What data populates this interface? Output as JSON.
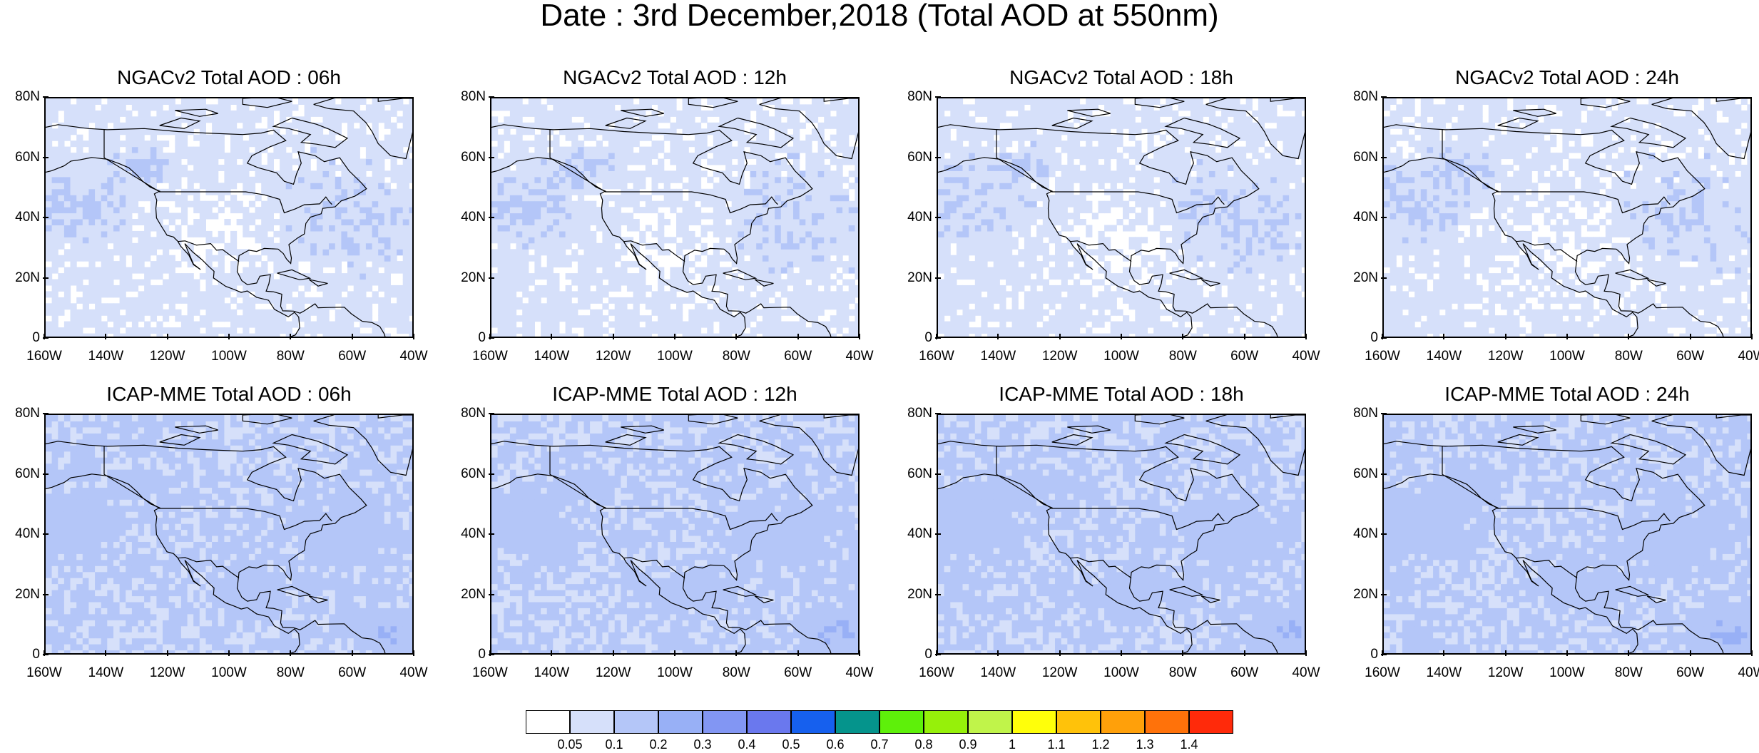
{
  "title": "Date : 3rd December,2018 (Total AOD at 550nm)",
  "y_ticks": [
    "80N",
    "60N",
    "40N",
    "20N",
    "0"
  ],
  "x_ticks": [
    "160W",
    "140W",
    "120W",
    "100W",
    "80W",
    "60W",
    "40W"
  ],
  "panels": [
    {
      "title": "NGACv2 Total AOD : 06h",
      "model": "NGACv2",
      "forecast_hour": "06h"
    },
    {
      "title": "NGACv2 Total AOD : 12h",
      "model": "NGACv2",
      "forecast_hour": "12h"
    },
    {
      "title": "NGACv2 Total AOD : 18h",
      "model": "NGACv2",
      "forecast_hour": "18h"
    },
    {
      "title": "NGACv2 Total AOD : 24h",
      "model": "NGACv2",
      "forecast_hour": "24h"
    },
    {
      "title": "ICAP-MME Total AOD : 06h",
      "model": "ICAP-MME",
      "forecast_hour": "06h"
    },
    {
      "title": "ICAP-MME Total AOD : 12h",
      "model": "ICAP-MME",
      "forecast_hour": "12h"
    },
    {
      "title": "ICAP-MME Total AOD : 18h",
      "model": "ICAP-MME",
      "forecast_hour": "18h"
    },
    {
      "title": "ICAP-MME Total AOD : 24h",
      "model": "ICAP-MME",
      "forecast_hour": "24h"
    }
  ],
  "colorbar": {
    "labels": [
      "0.05",
      "0.1",
      "0.2",
      "0.3",
      "0.4",
      "0.5",
      "0.6",
      "0.7",
      "0.8",
      "0.9",
      "1",
      "1.1",
      "1.2",
      "1.3",
      "1.4"
    ],
    "colors": [
      "#ffffff",
      "#d6e0fa",
      "#b4c6f8",
      "#98b0f6",
      "#8296f3",
      "#6a78ee",
      "#1660ee",
      "#05948c",
      "#5ef00a",
      "#96f00a",
      "#c0f44a",
      "#ffff0a",
      "#ffc20a",
      "#ffa00a",
      "#ff720a",
      "#ff2a0a"
    ]
  }
}
